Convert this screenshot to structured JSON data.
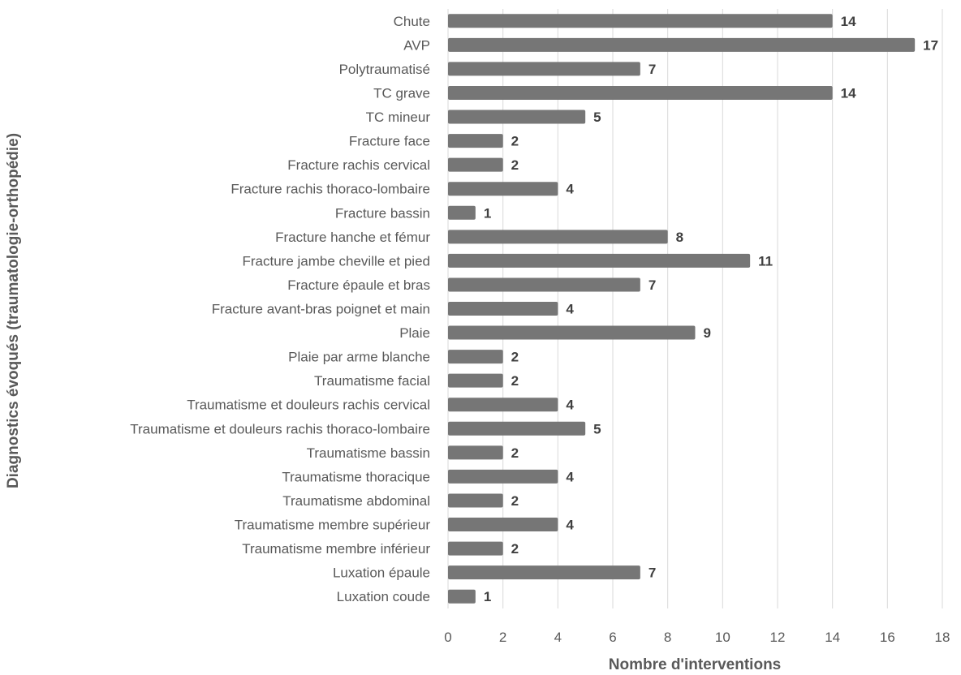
{
  "chart_data": {
    "type": "bar",
    "orientation": "horizontal",
    "categories": [
      "Chute",
      "AVP",
      "Polytraumatisé",
      "TC grave",
      "TC mineur",
      "Fracture face",
      "Fracture rachis cervical",
      "Fracture rachis thoraco-lombaire",
      "Fracture bassin",
      "Fracture hanche et fémur",
      "Fracture jambe cheville et pied",
      "Fracture épaule et bras",
      "Fracture avant-bras poignet et main",
      "Plaie",
      "Plaie par arme blanche",
      "Traumatisme facial",
      "Traumatisme et douleurs rachis cervical",
      "Traumatisme et douleurs rachis thoraco-lombaire",
      "Traumatisme bassin",
      "Traumatisme thoracique",
      "Traumatisme abdominal",
      "Traumatisme membre supérieur",
      "Traumatisme membre inférieur",
      "Luxation épaule",
      "Luxation coude"
    ],
    "values": [
      14,
      17,
      7,
      14,
      5,
      2,
      2,
      4,
      1,
      8,
      11,
      7,
      4,
      9,
      2,
      2,
      4,
      5,
      2,
      4,
      2,
      4,
      2,
      7,
      1
    ],
    "xlabel": "Nombre d'interventions",
    "ylabel": "Diagnostics évoqués (traumatologie-orthopédie)",
    "xlim": [
      0,
      18
    ],
    "xticks": [
      0,
      2,
      4,
      6,
      8,
      10,
      12,
      14,
      16,
      18
    ],
    "grid": true,
    "data_labels": true,
    "bar_color": "#767676"
  }
}
